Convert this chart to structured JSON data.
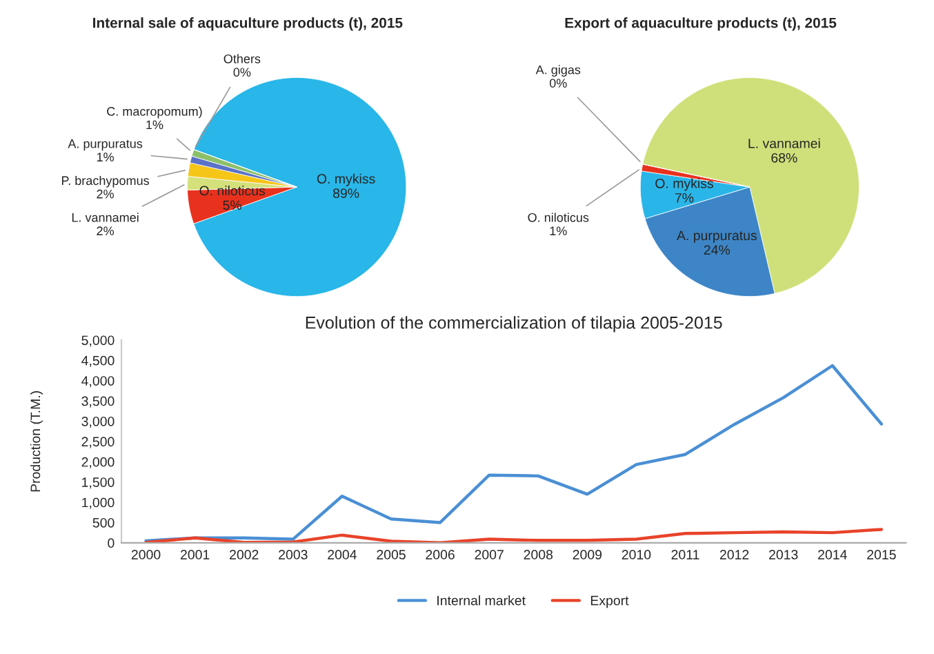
{
  "chart_data": [
    {
      "type": "pie",
      "title": "Internal sale of aquaculture products (t), 2015",
      "categories": [
        "O. mykiss",
        "O. niloticus",
        "L. vannamei",
        "P. brachypomus",
        "A. purpuratus",
        "C. macropomum)",
        "Others"
      ],
      "values": [
        89,
        5,
        2,
        2,
        1,
        1,
        0
      ],
      "value_labels": [
        "89%",
        "5%",
        "2%",
        "2%",
        "1%",
        "1%",
        "0%"
      ],
      "colors": [
        "#29b6e8",
        "#e8321e",
        "#d4e07a",
        "#f5c518",
        "#5a72c8",
        "#8dc06a",
        "#b0b0b0"
      ]
    },
    {
      "type": "pie",
      "title": "Export of aquaculture products (t), 2015",
      "categories": [
        "L. vannamei",
        "A. purpuratus",
        "O. mykiss",
        "O. niloticus",
        "A. gigas"
      ],
      "values": [
        68,
        24,
        7,
        1,
        0
      ],
      "value_labels": [
        "68%",
        "24%",
        "7%",
        "1%",
        "0%"
      ],
      "colors": [
        "#cfe07a",
        "#3d85c6",
        "#2ab5e8",
        "#e8321e",
        "#b0b0b0"
      ]
    },
    {
      "type": "line",
      "title": "Evolution of the commercialization of tilapia 2005-2015",
      "ylabel": "Production (T.M.)",
      "categories": [
        "2000",
        "2001",
        "2002",
        "2003",
        "2004",
        "2005",
        "2006",
        "2007",
        "2008",
        "2009",
        "2010",
        "2011",
        "2012",
        "2013",
        "2014",
        "2015"
      ],
      "series": [
        {
          "name": "Internal market",
          "color": "#4a8fd4",
          "values": [
            50,
            120,
            120,
            90,
            1150,
            590,
            500,
            1670,
            1650,
            1200,
            1930,
            2180,
            2920,
            3580,
            4370,
            2930
          ]
        },
        {
          "name": "Export",
          "color": "#e8432a",
          "values": [
            10,
            120,
            10,
            20,
            190,
            40,
            0,
            90,
            60,
            60,
            90,
            230,
            250,
            270,
            250,
            330
          ]
        }
      ],
      "ylim": [
        0,
        5000
      ],
      "yticks": [
        0,
        {
          "value": 500,
          "label": "500"
        },
        {
          "value": 1000,
          "label": "1,000"
        },
        {
          "value": 1500,
          "label": "1,500"
        },
        {
          "value": 2000,
          "label": "2,000"
        },
        {
          "value": 2500,
          "label": "2,500"
        },
        {
          "value": 3000,
          "label": "3,000"
        },
        {
          "value": 3500,
          "label": "3,500"
        },
        {
          "value": 4000,
          "label": "4,000"
        },
        {
          "value": 4500,
          "label": "4,500"
        },
        {
          "value": 5000,
          "label": "5,000"
        }
      ],
      "legend": "bottom"
    }
  ]
}
